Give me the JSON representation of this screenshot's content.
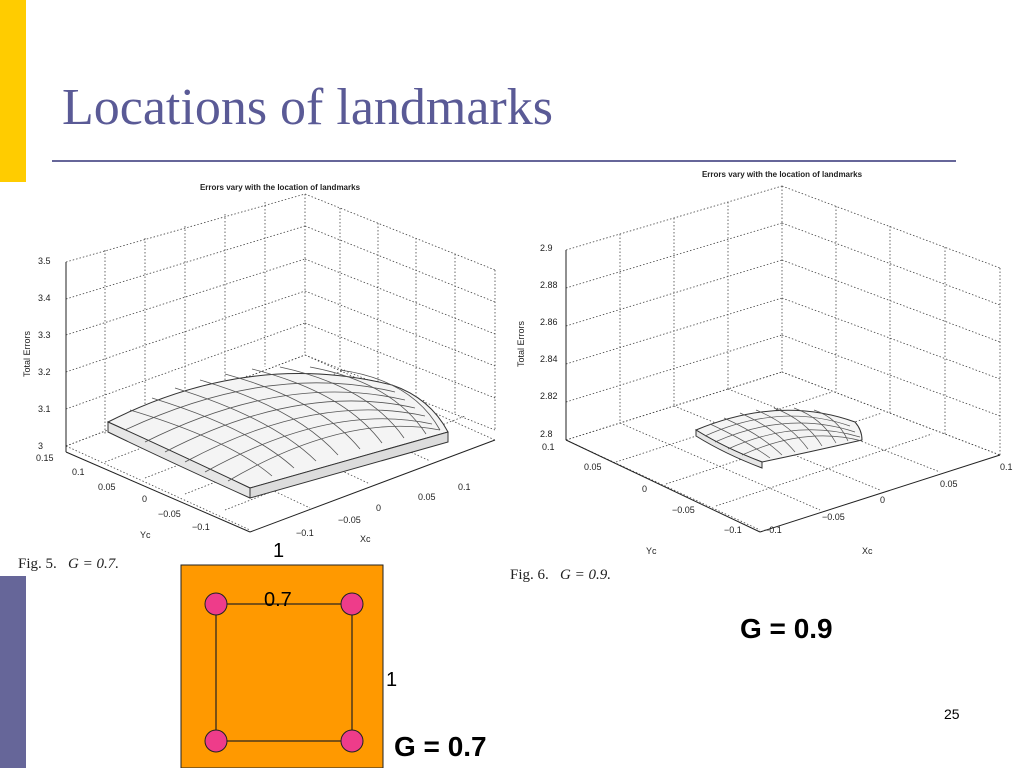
{
  "title": "Locations of landmarks",
  "page_number": "25",
  "figures": [
    {
      "plot_title": "Errors vary with the location of landmarks",
      "zlabel": "Total Errors",
      "ylabel": "Yc",
      "xlabel": "Xc",
      "z_ticks": [
        "3",
        "3.1",
        "3.2",
        "3.3",
        "3.4",
        "3.5"
      ],
      "y_ticks": [
        "0.15",
        "0.1",
        "0.05",
        "0",
        "−0.05",
        "−0.1"
      ],
      "x_ticks": [
        "−0.1",
        "−0.05",
        "0",
        "0.05",
        "0.1"
      ],
      "caption_prefix": "Fig. 5.",
      "caption_expr": "G = 0.7."
    },
    {
      "plot_title": "Errors vary with the location of landmarks",
      "zlabel": "Total Errors",
      "ylabel": "Yc",
      "xlabel": "Xc",
      "z_ticks": [
        "2.8",
        "2.82",
        "2.84",
        "2.86",
        "2.88",
        "2.9"
      ],
      "y_ticks": [
        "0.1",
        "0.05",
        "0",
        "−0.05",
        "−0.1"
      ],
      "x_ticks": [
        "−0.1",
        "−0.05",
        "0",
        "0.05",
        "0.1"
      ],
      "caption_prefix": "Fig. 6.",
      "caption_expr": "G = 0.9."
    }
  ],
  "diagram": {
    "outer_label": "1",
    "side_label": "1",
    "inner_label": "0.7",
    "fill_color": "#ff9900",
    "node_color": "#ee3c8a"
  },
  "labels": {
    "g_low": "G = 0.7",
    "g_high": "G = 0.9"
  }
}
